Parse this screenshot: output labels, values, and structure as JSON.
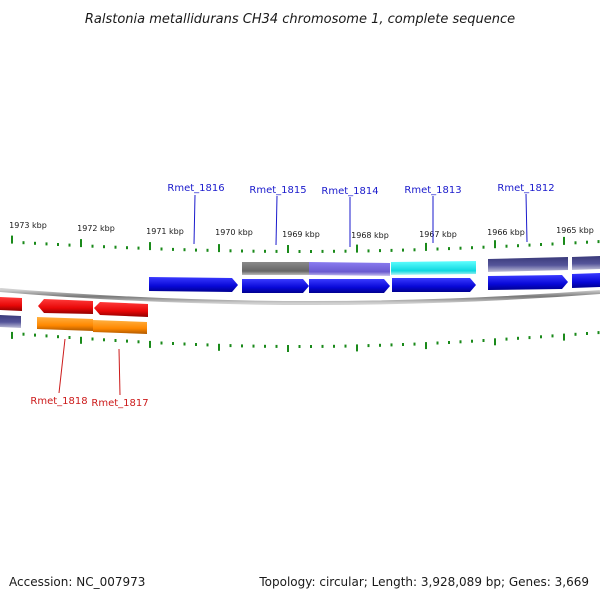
{
  "title": "Ralstonia metallidurans CH34 chromosome 1, complete sequence",
  "footer": {
    "accession": "Accession: NC_007973",
    "stats": "Topology: circular; Length: 3,928,089 bp; Genes: 3,669"
  },
  "scale_labels": [
    "1973 kbp",
    "1972 kbp",
    "1971 kbp",
    "1970 kbp",
    "1969 kbp",
    "1968 kbp",
    "1967 kbp",
    "1966 kbp",
    "1965 kbp"
  ],
  "gene_labels_forward": [
    "Rmet_1816",
    "Rmet_1815",
    "Rmet_1814",
    "Rmet_1813",
    "Rmet_1812"
  ],
  "gene_labels_reverse": [
    "Rmet_1818",
    "Rmet_1817"
  ],
  "colors": {
    "forward_label": "#1a1acc",
    "reverse_label": "#cc1a1a",
    "tick": "#1a8a1a",
    "backbone": "#888888",
    "cds_blue": "#1010e0",
    "cds_red": "#ee1010",
    "orange": "#ff8c00",
    "gray": "#6e6e6e",
    "slate": "#7060d0",
    "cyan": "#10e0e0",
    "navy": "#4a4a8c"
  }
}
